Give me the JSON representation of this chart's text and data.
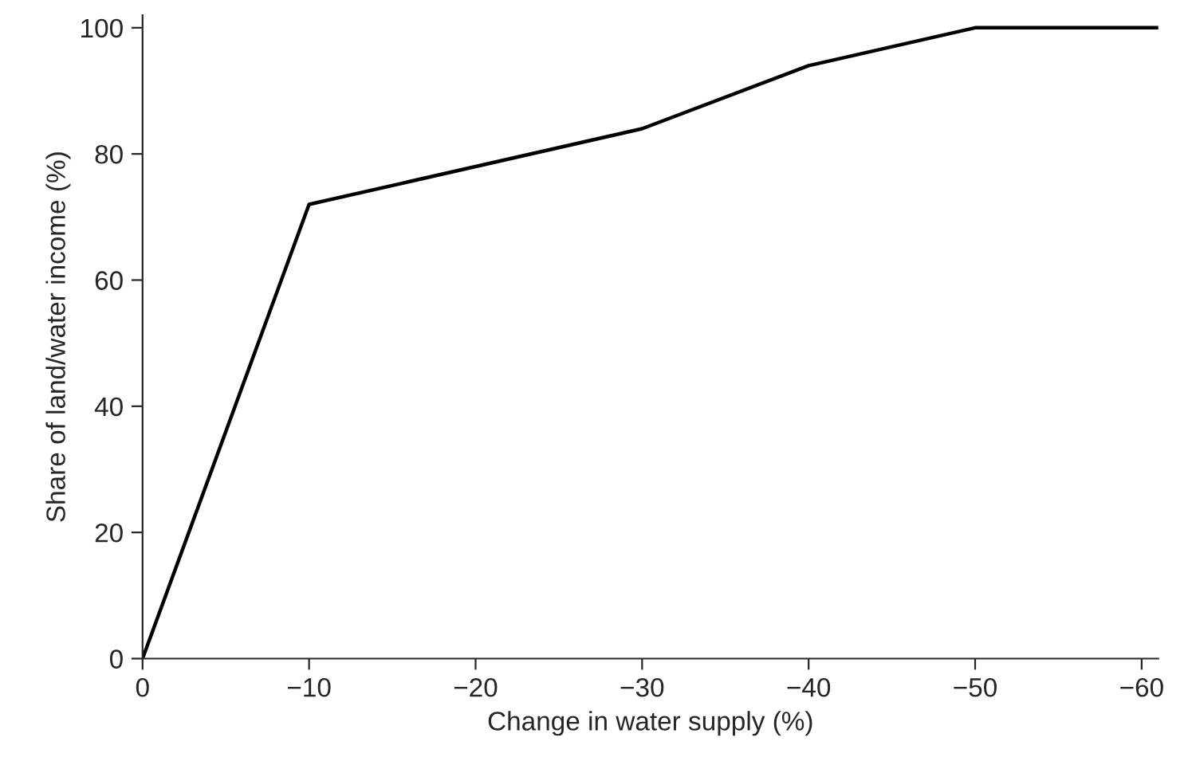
{
  "chart_data": {
    "type": "line",
    "xlabel": "Change in water supply (%)",
    "ylabel": "Share of land/water income (%)",
    "x": [
      0,
      -10,
      -20,
      -30,
      -40,
      -50,
      -61
    ],
    "series": [
      {
        "color": "#000000",
        "values": [
          0,
          72,
          78,
          84,
          94,
          100,
          100
        ]
      }
    ],
    "xlim": [
      0,
      -61
    ],
    "ylim": [
      0,
      102
    ],
    "xticks": [
      0,
      {
        "value": -10,
        "label": "−10"
      },
      {
        "value": -20,
        "label": "−20"
      },
      {
        "value": -30,
        "label": "−30"
      },
      {
        "value": -40,
        "label": "−40"
      },
      {
        "value": -50,
        "label": "−50"
      },
      {
        "value": -60,
        "label": "−60"
      }
    ],
    "yticks": [
      0,
      20,
      40,
      60,
      80,
      100
    ],
    "grid": false,
    "marker": "none",
    "line_style": "solid"
  }
}
